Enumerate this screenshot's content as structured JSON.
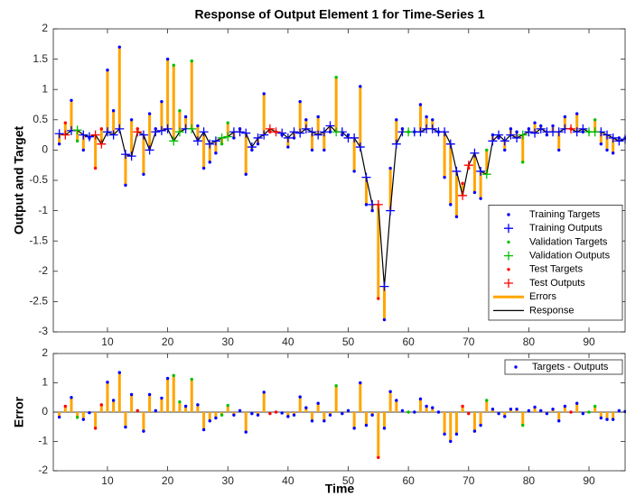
{
  "chart_data": [
    {
      "type": "line",
      "title": "Response of Output Element 1 for Time-Series 1",
      "ylabel": "Output and Target",
      "xlim": [
        1,
        96
      ],
      "xticks": [
        10,
        20,
        30,
        40,
        50,
        60,
        70,
        80,
        90
      ],
      "ylim": [
        -3,
        2
      ],
      "yticks": [
        -3,
        -2.5,
        -2,
        -1.5,
        -1,
        -0.5,
        0,
        0.5,
        1,
        1.5,
        2
      ],
      "legend": "lower right",
      "grid": false,
      "series": [
        {
          "name": "Training Targets",
          "color": "#0000ff",
          "marker": ".",
          "x": [
            2,
            4,
            6,
            7,
            10,
            11,
            12,
            13,
            14,
            16,
            17,
            18,
            19,
            20,
            23,
            25,
            26,
            27,
            28,
            31,
            32,
            33,
            34,
            35,
            36,
            39,
            40,
            41,
            42,
            43,
            44,
            45,
            46,
            47,
            49,
            50,
            51,
            52,
            53,
            54,
            56,
            57,
            58,
            59,
            61,
            62,
            63,
            64,
            65,
            66,
            67,
            68,
            71,
            72,
            74,
            75,
            76,
            77,
            78,
            80,
            81,
            82,
            83,
            84,
            85,
            86,
            88,
            89,
            92,
            93,
            94,
            95,
            96
          ],
          "values": [
            0.1,
            0.82,
            0.0,
            0.2,
            1.32,
            0.65,
            1.7,
            -0.58,
            0.5,
            -0.4,
            0.6,
            0.35,
            0.8,
            1.5,
            0.55,
            0.4,
            -0.3,
            -0.2,
            -0.05,
            0.2,
            0.35,
            -0.4,
            0.0,
            0.1,
            0.93,
            0.25,
            0.05,
            0.2,
            0.8,
            0.5,
            0.0,
            0.55,
            0.0,
            0.3,
            0.25,
            0.25,
            -0.35,
            1.05,
            -0.9,
            -1.0,
            -2.8,
            -0.3,
            0.5,
            0.35,
            0.3,
            0.75,
            0.55,
            0.5,
            0.3,
            -0.45,
            -0.9,
            -1.1,
            -0.7,
            -0.8,
            0.25,
            0.2,
            0.0,
            0.35,
            0.3,
            0.35,
            0.45,
            0.4,
            0.25,
            0.4,
            0.0,
            0.55,
            0.6,
            0.3,
            0.1,
            0.0,
            -0.05,
            0.2,
            0.2
          ]
        },
        {
          "name": "Training Outputs",
          "color": "#0000ff",
          "marker": "+",
          "x": [
            2,
            4,
            6,
            7,
            10,
            11,
            12,
            13,
            14,
            16,
            17,
            18,
            19,
            20,
            23,
            25,
            26,
            27,
            28,
            31,
            32,
            33,
            34,
            35,
            36,
            39,
            40,
            41,
            42,
            43,
            44,
            45,
            46,
            47,
            49,
            50,
            51,
            52,
            53,
            54,
            56,
            57,
            58,
            59,
            61,
            62,
            63,
            64,
            65,
            66,
            67,
            68,
            71,
            72,
            74,
            75,
            76,
            77,
            78,
            80,
            81,
            82,
            83,
            84,
            85,
            86,
            88,
            89,
            92,
            93,
            94,
            95,
            96
          ],
          "values": [
            0.27,
            0.32,
            0.25,
            0.22,
            0.3,
            0.25,
            0.35,
            -0.07,
            -0.1,
            0.25,
            0.0,
            0.3,
            0.32,
            0.35,
            0.35,
            0.15,
            0.3,
            0.1,
            0.15,
            0.3,
            0.3,
            0.28,
            0.05,
            0.2,
            0.25,
            0.28,
            0.2,
            0.3,
            0.28,
            0.35,
            0.3,
            0.25,
            0.3,
            0.4,
            0.3,
            0.2,
            0.2,
            0.05,
            -0.45,
            -0.9,
            -2.25,
            -1.0,
            0.1,
            0.3,
            0.3,
            0.3,
            0.35,
            0.35,
            0.3,
            0.3,
            0.1,
            -0.35,
            -0.05,
            -0.35,
            0.15,
            0.25,
            0.15,
            0.25,
            0.2,
            0.3,
            0.28,
            0.35,
            0.3,
            0.3,
            0.3,
            0.35,
            0.3,
            0.35,
            0.3,
            0.25,
            0.2,
            0.15,
            0.18
          ]
        },
        {
          "name": "Validation Targets",
          "color": "#00c000",
          "marker": ".",
          "x": [
            5,
            21,
            22,
            24,
            29,
            30,
            48,
            60,
            73,
            79,
            90,
            91
          ],
          "values": [
            0.15,
            1.4,
            0.65,
            1.47,
            0.1,
            0.45,
            1.2,
            0.3,
            0.0,
            -0.2,
            0.3,
            0.5
          ]
        },
        {
          "name": "Validation Outputs",
          "color": "#00c000",
          "marker": "+",
          "x": [
            5,
            21,
            22,
            24,
            29,
            30,
            48,
            60,
            73,
            79,
            90,
            91
          ],
          "values": [
            0.33,
            0.15,
            0.3,
            0.35,
            0.2,
            0.22,
            0.3,
            0.3,
            -0.4,
            0.25,
            0.3,
            0.3
          ]
        },
        {
          "name": "Test Targets",
          "color": "#ff0000",
          "marker": ".",
          "x": [
            3,
            8,
            9,
            15,
            37,
            38,
            55,
            69,
            70,
            87
          ],
          "values": [
            0.45,
            -0.3,
            0.35,
            0.35,
            0.3,
            0.3,
            -2.45,
            -0.55,
            -0.3,
            0.35
          ]
        },
        {
          "name": "Test Outputs",
          "color": "#ff0000",
          "marker": "+",
          "x": [
            3,
            8,
            9,
            15,
            37,
            38,
            55,
            69,
            70,
            87
          ],
          "values": [
            0.25,
            0.25,
            0.1,
            0.3,
            0.35,
            0.3,
            -0.9,
            -0.75,
            -0.25,
            0.35
          ]
        },
        {
          "name": "Errors",
          "color": "#ffa500"
        },
        {
          "name": "Response",
          "color": "#000000",
          "x": [
            2,
            3,
            4,
            5,
            6,
            7,
            8,
            9,
            10,
            11,
            12,
            13,
            14,
            15,
            16,
            17,
            18,
            19,
            20,
            21,
            22,
            23,
            24,
            25,
            26,
            27,
            28,
            29,
            30,
            31,
            32,
            33,
            34,
            35,
            36,
            37,
            38,
            39,
            40,
            41,
            42,
            43,
            44,
            45,
            46,
            47,
            48,
            49,
            50,
            51,
            52,
            53,
            54,
            55,
            56,
            57,
            58,
            59,
            60,
            61,
            62,
            63,
            64,
            65,
            66,
            67,
            68,
            69,
            70,
            71,
            72,
            73,
            74,
            75,
            76,
            77,
            78,
            79,
            80,
            81,
            82,
            83,
            84,
            85,
            86,
            87,
            88,
            89,
            90,
            91,
            92,
            93,
            94,
            95,
            96
          ],
          "values": [
            0.27,
            0.25,
            0.32,
            0.33,
            0.25,
            0.22,
            0.25,
            0.1,
            0.3,
            0.25,
            0.35,
            -0.07,
            -0.1,
            0.3,
            0.25,
            0.0,
            0.3,
            0.32,
            0.35,
            0.15,
            0.3,
            0.35,
            0.35,
            0.15,
            0.3,
            0.1,
            0.15,
            0.2,
            0.22,
            0.3,
            0.3,
            0.28,
            0.05,
            0.2,
            0.25,
            0.35,
            0.3,
            0.28,
            0.2,
            0.3,
            0.28,
            0.35,
            0.3,
            0.25,
            0.3,
            0.4,
            0.3,
            0.3,
            0.2,
            0.2,
            0.05,
            -0.45,
            -0.9,
            -0.9,
            -2.25,
            -1.0,
            0.1,
            0.3,
            0.3,
            0.3,
            0.3,
            0.35,
            0.35,
            0.3,
            0.3,
            0.1,
            -0.35,
            -0.75,
            -0.25,
            -0.05,
            -0.35,
            -0.4,
            0.15,
            0.25,
            0.15,
            0.25,
            0.2,
            0.25,
            0.3,
            0.28,
            0.35,
            0.3,
            0.3,
            0.3,
            0.35,
            0.35,
            0.3,
            0.35,
            0.3,
            0.3,
            0.3,
            0.25,
            0.2,
            0.15,
            0.18
          ]
        }
      ]
    },
    {
      "type": "stem",
      "xlabel": "Time",
      "ylabel": "Error",
      "xlim": [
        1,
        96
      ],
      "xticks": [
        10,
        20,
        30,
        40,
        50,
        60,
        70,
        80,
        90
      ],
      "ylim": [
        -2,
        2
      ],
      "yticks": [
        -2,
        -1,
        0,
        1,
        2
      ],
      "legend": "upper right",
      "grid": false,
      "stem_color": "#ffa500",
      "series": [
        {
          "name": "Targets - Outputs",
          "color": "#0000ff",
          "x": [
            2,
            3,
            4,
            5,
            6,
            7,
            8,
            9,
            10,
            11,
            12,
            13,
            14,
            15,
            16,
            17,
            18,
            19,
            20,
            21,
            22,
            23,
            24,
            25,
            26,
            27,
            28,
            29,
            30,
            31,
            32,
            33,
            34,
            35,
            36,
            37,
            38,
            39,
            40,
            41,
            42,
            43,
            44,
            45,
            46,
            47,
            48,
            49,
            50,
            51,
            52,
            53,
            54,
            55,
            56,
            57,
            58,
            59,
            60,
            61,
            62,
            63,
            64,
            65,
            66,
            67,
            68,
            69,
            70,
            71,
            72,
            73,
            74,
            75,
            76,
            77,
            78,
            79,
            80,
            81,
            82,
            83,
            84,
            85,
            86,
            87,
            88,
            89,
            90,
            91,
            92,
            93,
            94,
            95,
            96
          ],
          "values": [
            -0.17,
            0.2,
            0.5,
            -0.18,
            -0.25,
            -0.02,
            -0.55,
            0.25,
            1.02,
            0.4,
            1.35,
            -0.51,
            0.6,
            0.05,
            -0.65,
            0.6,
            0.05,
            0.48,
            1.15,
            1.25,
            0.35,
            0.2,
            1.12,
            0.25,
            -0.6,
            -0.3,
            -0.2,
            -0.1,
            0.23,
            -0.1,
            0.05,
            -0.68,
            -0.05,
            -0.1,
            0.68,
            -0.05,
            0,
            -0.03,
            -0.15,
            -0.1,
            0.52,
            0.15,
            -0.3,
            0.3,
            -0.3,
            -0.1,
            0.9,
            -0.05,
            0.05,
            -0.55,
            1.0,
            -0.45,
            -0.1,
            -1.55,
            -0.55,
            0.7,
            0.4,
            0.05,
            0,
            0,
            0.45,
            0.2,
            0.15,
            0,
            -0.75,
            -1.0,
            -0.75,
            0.2,
            -0.05,
            -0.65,
            -0.45,
            0.4,
            0.1,
            -0.05,
            -0.15,
            0.1,
            0.1,
            -0.45,
            0.05,
            0.17,
            0.05,
            -0.05,
            0.1,
            -0.3,
            0.2,
            0,
            0.3,
            -0.05,
            0,
            0.2,
            -0.2,
            -0.25,
            -0.25,
            0.05,
            0.02
          ]
        }
      ]
    }
  ]
}
